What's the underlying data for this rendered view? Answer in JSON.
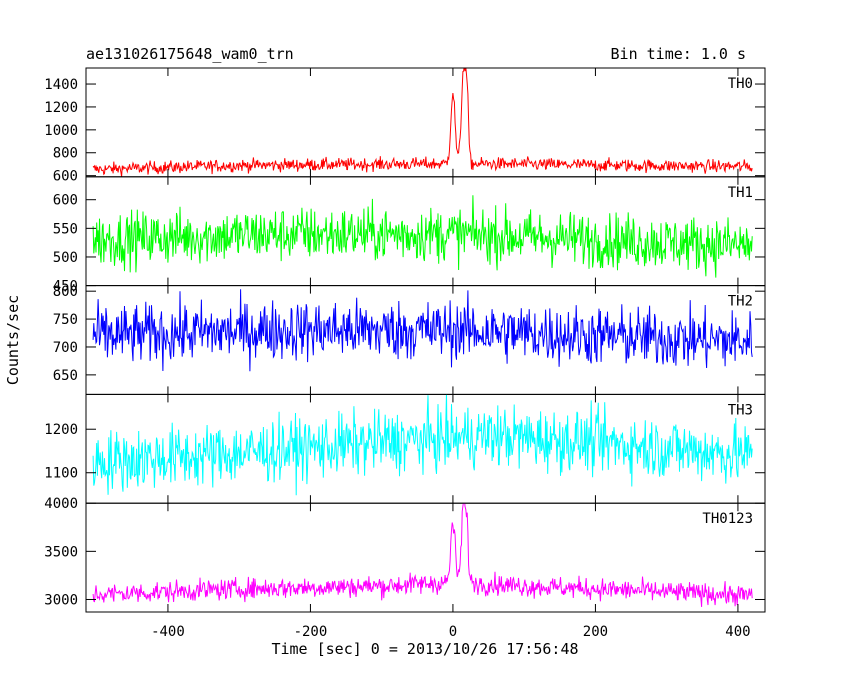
{
  "chart_data": {
    "type": "line",
    "title": "ae131026175648_wam0_trn",
    "subtitle": "Bin time: 1.0 s",
    "xlabel": "Time [sec] 0 = 2013/10/26 17:56:48",
    "ylabel": "Counts/sec",
    "xlim": [
      -515,
      438
    ],
    "xticks": [
      -400,
      -200,
      0,
      200,
      400
    ],
    "panels": [
      {
        "name": "TH0",
        "color": "#ff0000",
        "ylim": [
          590,
          1540
        ],
        "yticks": [
          600,
          800,
          1000,
          1200,
          1400
        ],
        "baseline": [
          [
            -505,
            655
          ],
          [
            -300,
            690
          ],
          [
            -100,
            700
          ],
          [
            0,
            705
          ],
          [
            100,
            700
          ],
          [
            300,
            685
          ],
          [
            420,
            680
          ]
        ],
        "noise": 28,
        "peaks": [
          [
            0,
            1320,
            3
          ],
          [
            15,
            1540,
            3
          ],
          [
            20,
            1200,
            2
          ]
        ]
      },
      {
        "name": "TH1",
        "color": "#00ff00",
        "ylim": [
          450,
          640
        ],
        "yticks": [
          450,
          500,
          550,
          600
        ],
        "baseline": [
          [
            -505,
            530
          ],
          [
            -250,
            540
          ],
          [
            0,
            540
          ],
          [
            200,
            530
          ],
          [
            420,
            520
          ]
        ],
        "noise": 24,
        "peaks": []
      },
      {
        "name": "TH2",
        "color": "#0000ff",
        "ylim": [
          615,
          810
        ],
        "yticks": [
          650,
          700,
          750,
          800
        ],
        "baseline": [
          [
            -505,
            720
          ],
          [
            -250,
            730
          ],
          [
            0,
            730
          ],
          [
            200,
            720
          ],
          [
            420,
            710
          ]
        ],
        "noise": 27,
        "peaks": []
      },
      {
        "name": "TH3",
        "color": "#00ffff",
        "ylim": [
          1030,
          1280
        ],
        "yticks": [
          1100,
          1200
        ],
        "baseline": [
          [
            -505,
            1125
          ],
          [
            -300,
            1145
          ],
          [
            -100,
            1170
          ],
          [
            50,
            1185
          ],
          [
            200,
            1170
          ],
          [
            420,
            1140
          ]
        ],
        "noise": 36,
        "peaks": []
      },
      {
        "name": "TH0123",
        "color": "#ff00ff",
        "ylim": [
          2870,
          4000
        ],
        "yticks": [
          3000,
          3500,
          4000
        ],
        "baseline": [
          [
            -505,
            3050
          ],
          [
            -300,
            3110
          ],
          [
            -100,
            3140
          ],
          [
            0,
            3180
          ],
          [
            100,
            3140
          ],
          [
            300,
            3080
          ],
          [
            420,
            3040
          ]
        ],
        "noise": 55,
        "peaks": [
          [
            0,
            3800,
            3
          ],
          [
            15,
            3990,
            3
          ],
          [
            20,
            3600,
            2
          ]
        ]
      }
    ]
  }
}
